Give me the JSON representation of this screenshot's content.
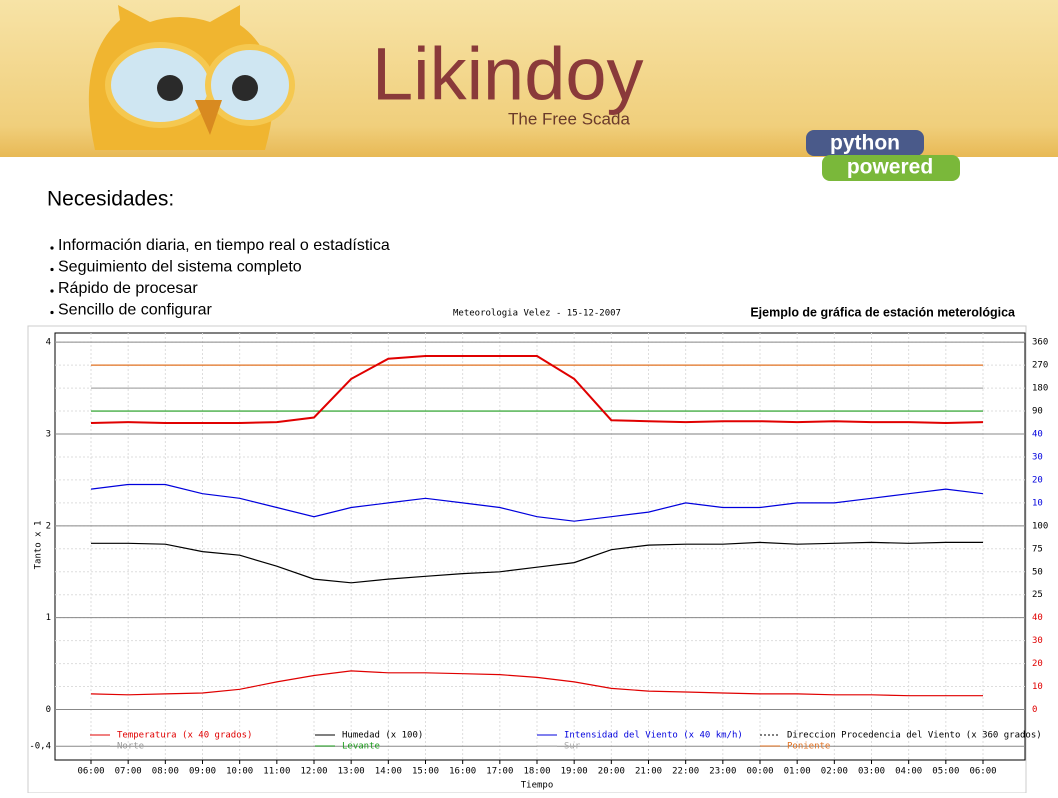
{
  "header": {
    "brand": "Likindoy",
    "tagline": "The Free Scada",
    "badge_top": "python",
    "badge_bottom": "powered"
  },
  "heading": "Necesidades:",
  "bullets": [
    "Información diaria, en tiempo real o estadística",
    "Seguimiento del sistema completo",
    "Rápido de procesar",
    "Sencillo de configurar"
  ],
  "caption": "Ejemplo de gráfica de estación meterológica",
  "chart_data": {
    "type": "line",
    "title": "Meteorologia Velez - 15-12-2007",
    "x_label": "Tiempo",
    "y_label": "Tanto x 1",
    "categories": [
      "06:00",
      "07:00",
      "08:00",
      "09:00",
      "10:00",
      "11:00",
      "12:00",
      "13:00",
      "14:00",
      "15:00",
      "16:00",
      "17:00",
      "18:00",
      "19:00",
      "20:00",
      "21:00",
      "22:00",
      "23:00",
      "00:00",
      "01:00",
      "02:00",
      "03:00",
      "04:00",
      "05:00",
      "06:00"
    ],
    "ylim": [
      -0.55,
      4.1
    ],
    "yticks": [
      4,
      3,
      2,
      1,
      0,
      {
        "value": -0.4,
        "label": "-0,4"
      }
    ],
    "grid": true,
    "right_scales": [
      {
        "color": "#000000",
        "ticks": [
          {
            "value": 4,
            "label": "360"
          },
          {
            "value": 3.75,
            "label": "270"
          },
          {
            "value": 3.5,
            "label": "180"
          },
          {
            "value": 3.25,
            "label": "90"
          }
        ]
      },
      {
        "color": "#0000dd",
        "ticks": [
          {
            "value": 3,
            "label": "40"
          },
          {
            "value": 2.75,
            "label": "30"
          },
          {
            "value": 2.5,
            "label": "20"
          },
          {
            "value": 2.25,
            "label": "10"
          }
        ]
      },
      {
        "color": "#000000",
        "ticks": [
          {
            "value": 2,
            "label": "100"
          },
          {
            "value": 1.75,
            "label": "75"
          },
          {
            "value": 1.5,
            "label": "50"
          },
          {
            "value": 1.25,
            "label": "25"
          }
        ]
      },
      {
        "color": "#e00000",
        "ticks": [
          {
            "value": 1,
            "label": "40"
          },
          {
            "value": 0.75,
            "label": "30"
          },
          {
            "value": 0.5,
            "label": "20"
          },
          {
            "value": 0.25,
            "label": "10"
          },
          {
            "value": 0,
            "label": "0"
          }
        ]
      }
    ],
    "series": [
      {
        "name": "Temperatura (x 40 grados)",
        "color": "#e00000",
        "values": [
          0.17,
          0.16,
          0.17,
          0.18,
          0.22,
          0.3,
          0.37,
          0.42,
          0.4,
          0.4,
          0.39,
          0.38,
          0.35,
          0.3,
          0.23,
          0.2,
          0.19,
          0.18,
          0.17,
          0.17,
          0.16,
          0.16,
          0.15,
          0.15,
          0.15
        ]
      },
      {
        "name": "Humedad (x 100)",
        "color": "#000000",
        "values": [
          1.81,
          1.81,
          1.8,
          1.72,
          1.68,
          1.56,
          1.42,
          1.38,
          1.42,
          1.45,
          1.48,
          1.5,
          1.55,
          1.6,
          1.74,
          1.79,
          1.8,
          1.8,
          1.82,
          1.8,
          1.81,
          1.82,
          1.81,
          1.82,
          1.82
        ]
      },
      {
        "name": "Intensidad del Viento (x 40 km/h)",
        "color": "#0000dd",
        "values": [
          2.4,
          2.45,
          2.45,
          2.35,
          2.3,
          2.2,
          2.1,
          2.2,
          2.25,
          2.3,
          2.25,
          2.2,
          2.1,
          2.05,
          2.1,
          2.15,
          2.25,
          2.2,
          2.2,
          2.25,
          2.25,
          2.3,
          2.35,
          2.4,
          2.35
        ]
      },
      {
        "name": "Direccion Procedencia del Viento (x 360 grados)",
        "color": "#e00000",
        "legend_color": "#000000",
        "legend_dash": "2,2",
        "values": [
          3.12,
          3.13,
          3.12,
          3.12,
          3.12,
          3.13,
          3.18,
          3.6,
          3.82,
          3.85,
          3.85,
          3.85,
          3.85,
          3.6,
          3.15,
          3.14,
          3.13,
          3.14,
          3.14,
          3.13,
          3.14,
          3.13,
          3.13,
          3.12,
          3.13
        ]
      }
    ],
    "references": [
      {
        "name": "Norte",
        "color": "#999999",
        "value": 3
      },
      {
        "name": "Levante",
        "color": "#1a9a1a",
        "value": 3.25
      },
      {
        "name": "Sur",
        "color": "#aaaaaa",
        "value": 3.5
      },
      {
        "name": "Poniente",
        "color": "#e07020",
        "value": 3.75
      }
    ]
  }
}
